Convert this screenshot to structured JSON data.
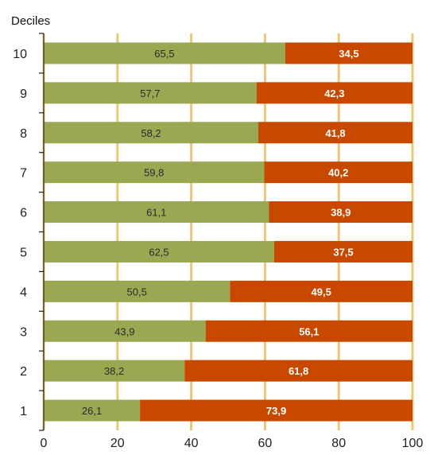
{
  "chart_data": {
    "type": "bar",
    "orientation": "horizontal",
    "stacked": true,
    "ylabel": "Deciles",
    "categories": [
      "10",
      "9",
      "8",
      "7",
      "6",
      "5",
      "4",
      "3",
      "2",
      "1"
    ],
    "series": [
      {
        "values": [
          65.5,
          57.7,
          58.2,
          59.8,
          61.1,
          62.5,
          50.5,
          43.9,
          38.2,
          26.1
        ],
        "labels": [
          "65,5",
          "57,7",
          "58,2",
          "59,8",
          "61,1",
          "62,5",
          "50,5",
          "43,9",
          "38,2",
          "26,1"
        ],
        "color": "#9aa852"
      },
      {
        "values": [
          34.5,
          42.3,
          41.8,
          40.2,
          38.9,
          37.5,
          49.5,
          56.1,
          61.8,
          73.9
        ],
        "labels": [
          "34,5",
          "42,3",
          "41,8",
          "40,2",
          "38,9",
          "37,5",
          "49,5",
          "56,1",
          "61,8",
          "73,9"
        ],
        "color": "#c84800"
      }
    ],
    "xlim": [
      0,
      100
    ],
    "xticks": [
      "0",
      "20",
      "40",
      "60",
      "80",
      "100"
    ],
    "grid": true,
    "grid_color": "#e8c97a",
    "legend": "none"
  }
}
